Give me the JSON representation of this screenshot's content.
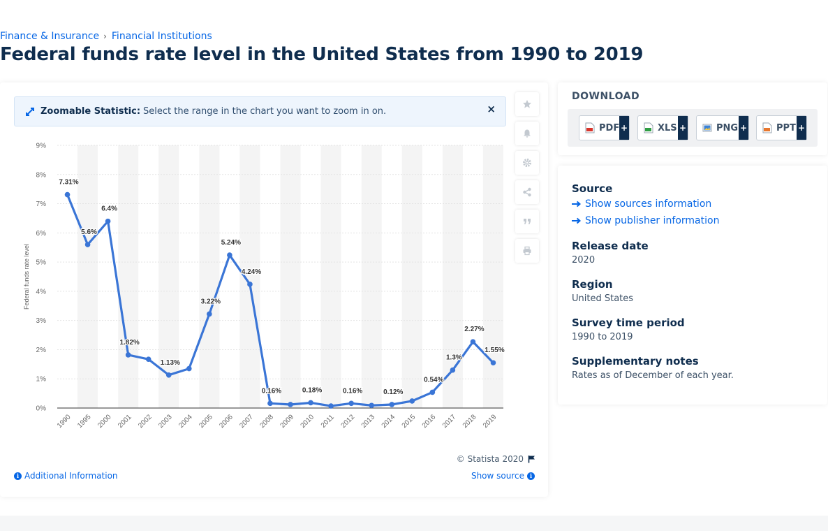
{
  "breadcrumb": {
    "item1": "Finance & Insurance",
    "separator": "›",
    "item2": "Financial Institutions"
  },
  "page_title": "Federal funds rate level in the United States from 1990 to 2019",
  "zoom_banner": {
    "label": "Zoomable Statistic:",
    "text": "Select the range in the chart you want to zoom in on.",
    "close": "×"
  },
  "side_tools": [
    "star-icon",
    "bell-icon",
    "gear-icon",
    "share-icon",
    "quote-icon",
    "print-icon"
  ],
  "chart_data": {
    "type": "line",
    "categories": [
      "1990",
      "1995",
      "2000",
      "2001",
      "2002",
      "2003",
      "2004",
      "2005",
      "2006",
      "2007",
      "2008",
      "2009",
      "2010",
      "2011",
      "2012",
      "2013",
      "2014",
      "2015",
      "2016",
      "2017",
      "2018",
      "2019"
    ],
    "series": [
      {
        "values": [
          7.31,
          5.6,
          6.4,
          1.82,
          1.67,
          1.13,
          1.35,
          3.22,
          5.24,
          4.24,
          0.16,
          0.12,
          0.18,
          0.07,
          0.16,
          0.09,
          0.12,
          0.24,
          0.54,
          1.3,
          2.27,
          1.55
        ]
      }
    ],
    "data_labels": [
      "7.31%",
      "5.6%",
      "6.4%",
      "1.82%",
      "",
      "1.13%",
      "",
      "3.22%",
      "5.24%",
      "4.24%",
      "0.16%",
      "",
      "0.18%",
      "",
      "0.16%",
      "",
      "0.12%",
      "",
      "0.54%",
      "1.3%",
      "2.27%",
      "1.55%"
    ],
    "yticks": [
      "0%",
      "1%",
      "2%",
      "3%",
      "4%",
      "5%",
      "6%",
      "7%",
      "8%",
      "9%"
    ],
    "ylim": [
      0,
      9
    ],
    "ylabel": "Federal funds rate level",
    "xlabel": "",
    "grid": true,
    "colors": {
      "line": "#3a75d6",
      "band": "#f4f4f4",
      "grid": "#e3e3e3"
    }
  },
  "copyright": "© Statista 2020",
  "additional_info": "Additional Information",
  "show_source": "Show source",
  "download": {
    "title": "DOWNLOAD",
    "buttons": [
      {
        "label": "PDF",
        "plus": "+"
      },
      {
        "label": "XLS",
        "plus": "+"
      },
      {
        "label": "PNG",
        "plus": "+"
      },
      {
        "label": "PPT",
        "plus": "+"
      }
    ]
  },
  "info": {
    "source_heading": "Source",
    "show_sources": "Show sources information",
    "show_publisher": "Show publisher information",
    "release_heading": "Release date",
    "release_value": "2020",
    "region_heading": "Region",
    "region_value": "United States",
    "survey_heading": "Survey time period",
    "survey_value": "1990 to 2019",
    "notes_heading": "Supplementary notes",
    "notes_value": "Rates as of December of each year."
  }
}
